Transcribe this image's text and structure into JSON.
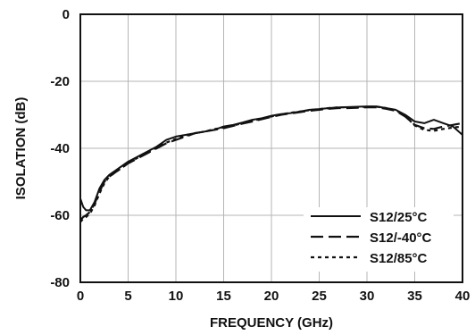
{
  "chart_data": {
    "type": "line",
    "xlabel": "FREQUENCY (GHz)",
    "ylabel": "ISOLATION (dB)",
    "xlim": [
      0,
      40
    ],
    "ylim": [
      -80,
      0
    ],
    "x_ticks": [
      0,
      5,
      10,
      15,
      20,
      25,
      30,
      35,
      40
    ],
    "y_ticks": [
      0,
      -20,
      -40,
      -60,
      -80
    ],
    "x_tick_labels": [
      "0",
      "5",
      "10",
      "15",
      "20",
      "25",
      "30",
      "35",
      "40"
    ],
    "y_tick_labels": [
      "0",
      "-20",
      "-40",
      "-60",
      "-80"
    ],
    "grid": true,
    "legend_position": "bottom-right",
    "series": [
      {
        "name": "S12/25°C",
        "style": "solid",
        "color": "#111111",
        "x": [
          0,
          0.3,
          0.6,
          1.0,
          1.5,
          2.0,
          2.5,
          3,
          4,
          5,
          6,
          7,
          8,
          9,
          10,
          11,
          12,
          13,
          14,
          15,
          16,
          17,
          18,
          19,
          20,
          21,
          22,
          23,
          24,
          25,
          26,
          27,
          28,
          29,
          30,
          31,
          32,
          33,
          34,
          35,
          36,
          37,
          38,
          39,
          40
        ],
        "y": [
          -55,
          -57.5,
          -58.5,
          -58.5,
          -56,
          -52,
          -49.5,
          -48,
          -46,
          -44,
          -42.5,
          -41,
          -39.5,
          -37.5,
          -36.5,
          -36,
          -35.5,
          -35,
          -34.5,
          -33.5,
          -33,
          -32.3,
          -31.5,
          -31,
          -30.3,
          -29.8,
          -29.5,
          -29,
          -28.5,
          -28.3,
          -28,
          -27.8,
          -27.7,
          -27.6,
          -27.5,
          -27.5,
          -28,
          -28.5,
          -30,
          -32,
          -32.5,
          -31.5,
          -32.5,
          -33.5,
          -36
        ]
      },
      {
        "name": "S12/-40°C",
        "style": "dashed",
        "color": "#111111",
        "x": [
          0,
          0.3,
          0.6,
          1.0,
          1.5,
          2.0,
          2.5,
          3,
          4,
          5,
          6,
          7,
          8,
          9,
          10,
          11,
          12,
          13,
          14,
          15,
          16,
          17,
          18,
          19,
          20,
          21,
          22,
          23,
          24,
          25,
          26,
          27,
          28,
          29,
          30,
          31,
          32,
          33,
          34,
          35,
          36,
          37,
          38,
          39,
          40
        ],
        "y": [
          -61.5,
          -60.5,
          -60,
          -59,
          -56.5,
          -53,
          -50,
          -48.5,
          -46.5,
          -44.5,
          -43,
          -41.5,
          -40,
          -38.5,
          -37.5,
          -36.5,
          -35.5,
          -35,
          -34.5,
          -34,
          -33.3,
          -32.6,
          -32,
          -31.3,
          -30.6,
          -30,
          -29.6,
          -29.2,
          -28.8,
          -28.5,
          -28.2,
          -28,
          -28,
          -27.9,
          -27.8,
          -27.8,
          -28.2,
          -28.8,
          -30.5,
          -33,
          -34,
          -34.2,
          -33.5,
          -33,
          -32.5
        ]
      },
      {
        "name": "S12/85°C",
        "style": "dotted",
        "color": "#111111",
        "x": [
          0,
          0.3,
          0.6,
          1.0,
          1.5,
          2.0,
          2.5,
          3,
          4,
          5,
          6,
          7,
          8,
          9,
          10,
          11,
          12,
          13,
          14,
          15,
          16,
          17,
          18,
          19,
          20,
          21,
          22,
          23,
          24,
          25,
          26,
          27,
          28,
          29,
          30,
          31,
          32,
          33,
          34,
          35,
          36,
          37,
          38,
          39,
          40
        ],
        "y": [
          -62,
          -61,
          -60.5,
          -59.5,
          -57,
          -53.5,
          -50.5,
          -48.5,
          -46.5,
          -44.5,
          -42.8,
          -41.2,
          -39.8,
          -38.3,
          -37.2,
          -36.3,
          -35.5,
          -35,
          -34.3,
          -33.8,
          -33.2,
          -32.5,
          -31.8,
          -31.2,
          -30.5,
          -29.9,
          -29.4,
          -29,
          -28.6,
          -28.3,
          -28,
          -27.8,
          -27.8,
          -27.7,
          -27.6,
          -27.6,
          -28,
          -28.6,
          -30.3,
          -33.2,
          -34.5,
          -34.8,
          -34.2,
          -33.8,
          -33.5
        ]
      }
    ]
  }
}
